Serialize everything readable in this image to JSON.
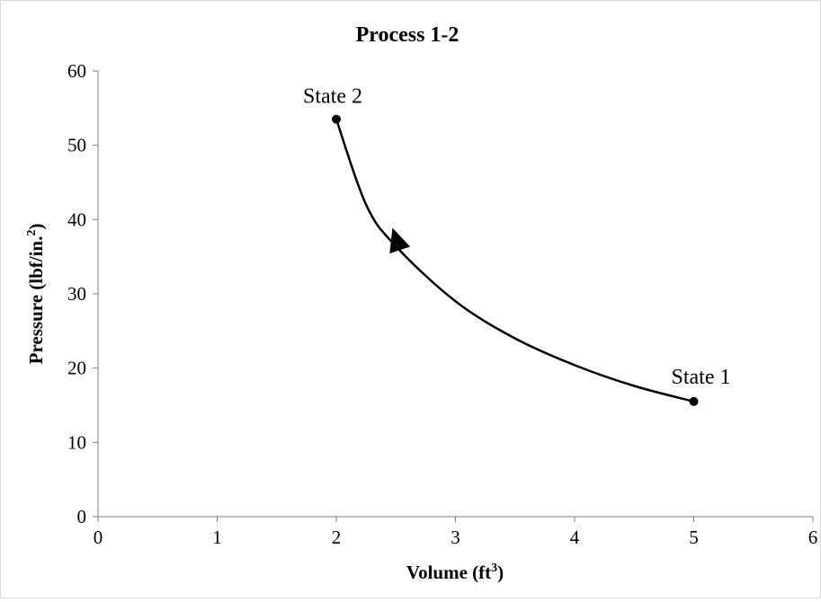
{
  "chart_data": {
    "type": "scatter",
    "title": "Process 1-2",
    "xlabel": "Volume (ft",
    "xlabel_sup": "3",
    "xlabel_close": ")",
    "ylabel": "Pressure (lbf/in.",
    "ylabel_sup": "2",
    "ylabel_close": ")",
    "xlim": [
      0,
      6
    ],
    "ylim": [
      0,
      60
    ],
    "x_ticks": [
      0,
      1,
      2,
      3,
      4,
      5,
      6
    ],
    "y_ticks": [
      0,
      10,
      20,
      30,
      40,
      50,
      60
    ],
    "grid": false,
    "legend": "none",
    "series": [
      {
        "values_x": [
          5.0,
          4.5,
          4.0,
          3.5,
          3.0,
          2.5,
          2.25,
          2.0
        ],
        "values_y": [
          15.5,
          17.6,
          20.4,
          24.0,
          29.0,
          36.4,
          42.0,
          53.5
        ],
        "direction": "from State 1 to State 2",
        "color": "#000000"
      }
    ],
    "points": [
      {
        "label": "State 1",
        "x": 5.0,
        "y": 15.5
      },
      {
        "label": "State 2",
        "x": 2.0,
        "y": 53.5
      }
    ],
    "arrow_at": {
      "x": 2.5,
      "y": 37.5
    }
  }
}
